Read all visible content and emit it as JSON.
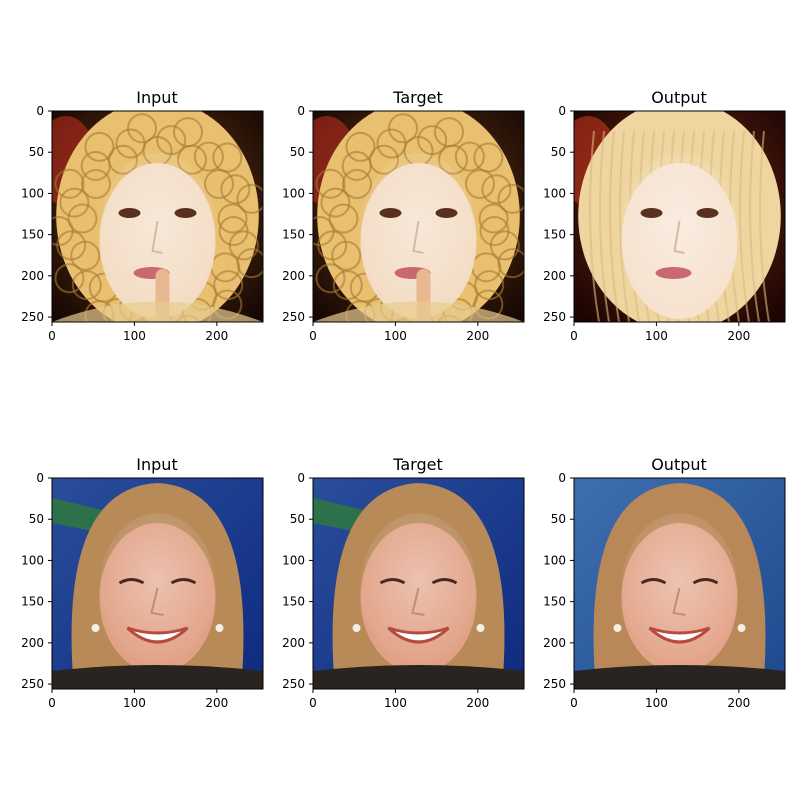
{
  "chart_data": [
    {
      "type": "image",
      "title": "Input",
      "xticks": [
        0,
        100,
        200
      ],
      "yticks": [
        0,
        50,
        100,
        150,
        200,
        250
      ],
      "xlim": [
        0,
        256
      ],
      "ylim": [
        256,
        0
      ],
      "image_subject": "curly-blonde-face",
      "colors": {
        "bg": "#2a1408",
        "hair": "#e8c070",
        "skin": "#f3dcc4",
        "accent": "#c83020"
      }
    },
    {
      "type": "image",
      "title": "Target",
      "xticks": [
        0,
        100,
        200
      ],
      "yticks": [
        0,
        50,
        100,
        150,
        200,
        250
      ],
      "xlim": [
        0,
        256
      ],
      "ylim": [
        256,
        0
      ],
      "image_subject": "curly-blonde-face",
      "colors": {
        "bg": "#2a1408",
        "hair": "#e8c070",
        "skin": "#f3dcc4",
        "accent": "#c83020"
      }
    },
    {
      "type": "image",
      "title": "Output",
      "xticks": [
        0,
        100,
        200
      ],
      "yticks": [
        0,
        50,
        100,
        150,
        200,
        250
      ],
      "xlim": [
        0,
        256
      ],
      "ylim": [
        256,
        0
      ],
      "image_subject": "smooth-blonde-face",
      "colors": {
        "bg": "#3a0c06",
        "hair": "#efd6a0",
        "skin": "#f6e2cf",
        "accent": "#d23a22"
      }
    },
    {
      "type": "image",
      "title": "Input",
      "xticks": [
        0,
        100,
        200
      ],
      "yticks": [
        0,
        50,
        100,
        150,
        200,
        250
      ],
      "xlim": [
        0,
        256
      ],
      "ylim": [
        256,
        0
      ],
      "image_subject": "bob-hair-smiling-face",
      "colors": {
        "bg": "#1c3c8c",
        "hair": "#b88a58",
        "skin": "#e1a185",
        "accent": "#2f7a3a"
      }
    },
    {
      "type": "image",
      "title": "Target",
      "xticks": [
        0,
        100,
        200
      ],
      "yticks": [
        0,
        50,
        100,
        150,
        200,
        250
      ],
      "xlim": [
        0,
        256
      ],
      "ylim": [
        256,
        0
      ],
      "image_subject": "bob-hair-smiling-face",
      "colors": {
        "bg": "#1c3c8c",
        "hair": "#b88a58",
        "skin": "#e1a185",
        "accent": "#2f7a3a"
      }
    },
    {
      "type": "image",
      "title": "Output",
      "xticks": [
        0,
        100,
        200
      ],
      "yticks": [
        0,
        50,
        100,
        150,
        200,
        250
      ],
      "xlim": [
        0,
        256
      ],
      "ylim": [
        256,
        0
      ],
      "image_subject": "bob-hair-smiling-face",
      "colors": {
        "bg": "#2e5a9c",
        "hair": "#b98858",
        "skin": "#e3a489",
        "accent": "#2e5a9c"
      }
    }
  ]
}
